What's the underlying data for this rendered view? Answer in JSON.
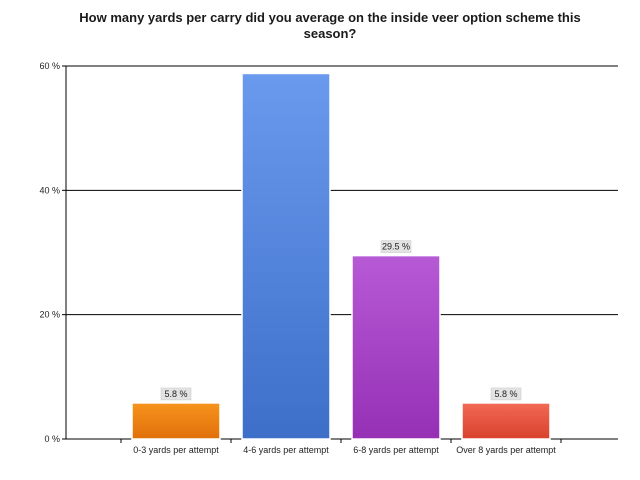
{
  "chart_data": {
    "type": "bar",
    "title": "How many yards per carry did you average on the inside veer option scheme this season?",
    "categories": [
      "0-3 yards per attempt",
      "4-6 yards per attempt",
      "6-8 yards per attempt",
      "Over 8 yards per attempt"
    ],
    "values": [
      5.8,
      58.8,
      29.5,
      5.8
    ],
    "data_labels": [
      "5.8 %",
      "",
      "29.5 %",
      "5.8 %"
    ],
    "ylim": [
      0,
      60
    ],
    "yticks": [
      0,
      20,
      40,
      60
    ],
    "ytick_labels": [
      "0 %",
      "20 %",
      "40 %",
      "60 %"
    ],
    "grid": true,
    "bar_colors": [
      {
        "top": "#f7941d",
        "bottom": "#e0700a"
      },
      {
        "top": "#6a9aee",
        "bottom": "#3d6fc9"
      },
      {
        "top": "#b75ad6",
        "bottom": "#9530b5"
      },
      {
        "top": "#f26a55",
        "bottom": "#d8412c"
      }
    ]
  }
}
